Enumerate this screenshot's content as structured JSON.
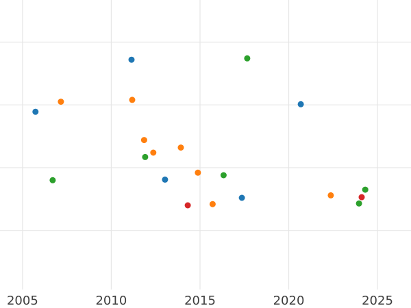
{
  "figure": {
    "background_color": "#ffffff"
  },
  "chart_data": {
    "type": "scatter",
    "title": "",
    "xlabel": "",
    "ylabel": "",
    "x_tick_labels": [
      "2005",
      "2010",
      "2015",
      "2020",
      "2025"
    ],
    "x_tick_values": [
      2005,
      2010,
      2015,
      2020,
      2025
    ],
    "x_range": [
      2003.73,
      2026.89
    ],
    "y_range": [
      0.06,
      4.67
    ],
    "y_gridline_values": [
      1,
      2,
      3,
      4
    ],
    "y_tick_labels_visible": false,
    "y_unit_note": "y-axis gridlines carry no visible labels; y values are expressed in gridline units where the lowest visible gridline = 1 and each gridline step = 1",
    "grid": true,
    "grid_color": "#e6e6e6",
    "tick_label_color": "#3d3d3d",
    "series": [
      {
        "name": "blue",
        "color": "#1f77b4",
        "points": [
          [
            2005.73,
            2.89
          ],
          [
            2011.14,
            3.72
          ],
          [
            2013.03,
            1.81
          ],
          [
            2017.36,
            1.52
          ],
          [
            2020.68,
            3.01
          ]
        ]
      },
      {
        "name": "orange",
        "color": "#ff7f0e",
        "points": [
          [
            2007.16,
            3.05
          ],
          [
            2011.18,
            3.08
          ],
          [
            2011.85,
            2.44
          ],
          [
            2012.37,
            2.24
          ],
          [
            2013.92,
            2.32
          ],
          [
            2014.88,
            1.92
          ],
          [
            2015.71,
            1.42
          ],
          [
            2022.37,
            1.56
          ]
        ]
      },
      {
        "name": "green",
        "color": "#2ca02c",
        "points": [
          [
            2006.7,
            1.8
          ],
          [
            2011.91,
            2.17
          ],
          [
            2016.33,
            1.88
          ],
          [
            2017.66,
            3.74
          ],
          [
            2023.96,
            1.43
          ],
          [
            2024.31,
            1.65
          ]
        ]
      },
      {
        "name": "red",
        "color": "#d62728",
        "points": [
          [
            2014.31,
            1.4
          ],
          [
            2024.11,
            1.53
          ]
        ]
      }
    ]
  }
}
